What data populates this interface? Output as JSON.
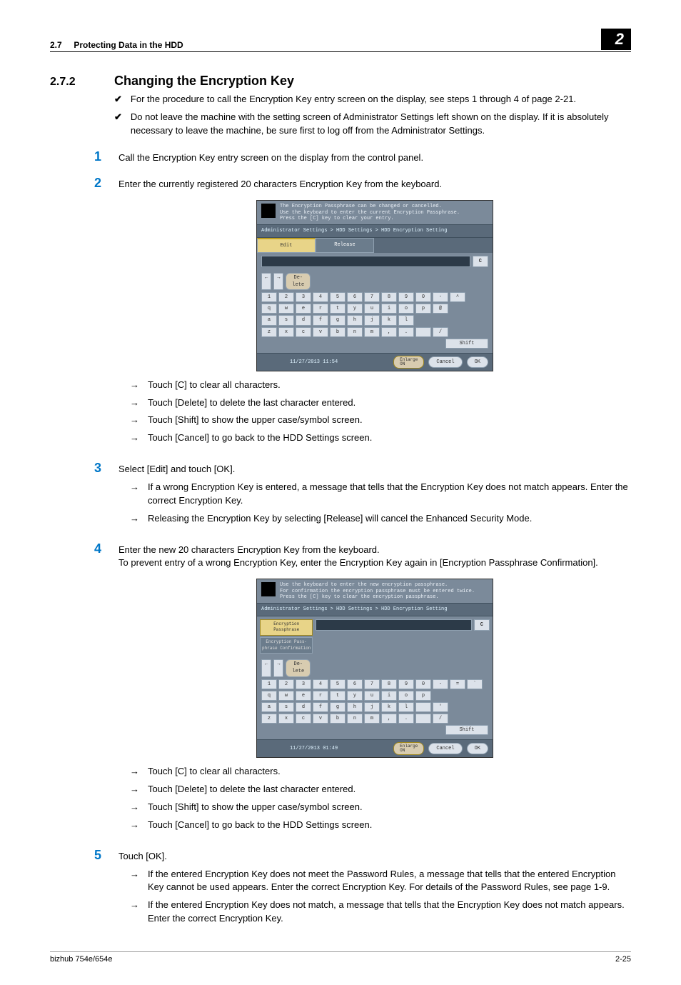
{
  "header": {
    "section_num_label": "2.7",
    "section_label": "Protecting Data in the HDD",
    "chapter_badge": "2"
  },
  "title": {
    "number": "2.7.2",
    "heading": "Changing the Encryption Key"
  },
  "pre_checks": [
    "For the procedure to call the Encryption Key entry screen on the display, see steps 1 through 4 of page 2-21.",
    "Do not leave the machine with the setting screen of Administrator Settings left shown on the display. If it is absolutely necessary to leave the machine, be sure first to log off from the Administrator Settings."
  ],
  "steps": {
    "s1": "Call the Encryption Key entry screen on the display from the control panel.",
    "s2": "Enter the currently registered 20 characters Encryption Key from the keyboard.",
    "s3": "Select [Edit] and touch [OK].",
    "s4a": "Enter the new 20 characters Encryption Key from the keyboard.",
    "s4b": "To prevent entry of a wrong Encryption Key, enter the Encryption Key again in [Encryption Passphrase Confirmation].",
    "s5": "Touch [OK]."
  },
  "arrows_after_s2": [
    "Touch [C] to clear all characters.",
    "Touch [Delete] to delete the last character entered.",
    "Touch [Shift] to show the upper case/symbol screen.",
    "Touch [Cancel] to go back to the HDD Settings screen."
  ],
  "arrows_after_s3": [
    "If a wrong Encryption Key is entered, a message that tells that the Encryption Key does not match appears. Enter the correct Encryption Key.",
    "Releasing the Encryption Key by selecting [Release] will cancel the Enhanced Security Mode."
  ],
  "arrows_after_s4": [
    "Touch [C] to clear all characters.",
    "Touch [Delete] to delete the last character entered.",
    "Touch [Shift] to show the upper case/symbol screen.",
    "Touch [Cancel] to go back to the HDD Settings screen."
  ],
  "arrows_after_s5": [
    "If the entered Encryption Key does not meet the Password Rules, a message that tells that the entered Encryption Key cannot be used appears. Enter the correct Encryption Key. For details of the Password Rules, see page 1-9.",
    "If the entered Encryption Key does not match, a message that tells that the Encryption Key does not match appears. Enter the correct Encryption Key."
  ],
  "screenshot1": {
    "msg": "The Encryption Passphrase can be changed or cancelled.\nUse the keyboard to enter the current Encryption Passphrase.\nPress the [C] key to clear your entry.",
    "breadcrumb": "Administrator Settings > HDD Settings > HDD Encryption Setting",
    "tab_edit": "Edit",
    "tab_release": "Release",
    "c_btn": "C",
    "delete": "De-\nlete",
    "shift": "Shift",
    "timestamp": "11/27/2013   11:54",
    "enlarge": "Enlarge\nON",
    "cancel": "Cancel",
    "ok": "OK",
    "row1": [
      "1",
      "2",
      "3",
      "4",
      "5",
      "6",
      "7",
      "8",
      "9",
      "0",
      "-",
      "^"
    ],
    "row2": [
      "q",
      "w",
      "e",
      "r",
      "t",
      "y",
      "u",
      "i",
      "o",
      "p",
      "@"
    ],
    "row3": [
      "a",
      "s",
      "d",
      "f",
      "g",
      "h",
      "j",
      "k",
      "l"
    ],
    "row4": [
      "z",
      "x",
      "c",
      "v",
      "b",
      "n",
      "m",
      ",",
      ".",
      "",
      "/"
    ]
  },
  "screenshot2": {
    "msg": "Use the keyboard to enter the new encryption passphrase.\nFor confirmation the encryption passphrase must be entered twice.\nPress the [C] key to clear the encryption passphrase.",
    "breadcrumb": "Administrator Settings > HDD Settings > HDD Encryption Setting",
    "side1": "Encryption\nPassphrase",
    "side2": "Encryption Pass-\nphrase Confirmation",
    "c_btn": "C",
    "delete": "De-\nlete",
    "shift": "Shift",
    "timestamp": "11/27/2013   01:49",
    "enlarge": "Enlarge\nON",
    "cancel": "Cancel",
    "ok": "OK",
    "row1": [
      "1",
      "2",
      "3",
      "4",
      "5",
      "6",
      "7",
      "8",
      "9",
      "0",
      "-",
      "=",
      "`"
    ],
    "row2": [
      "q",
      "w",
      "e",
      "r",
      "t",
      "y",
      "u",
      "i",
      "o",
      "p"
    ],
    "row3": [
      "a",
      "s",
      "d",
      "f",
      "g",
      "h",
      "j",
      "k",
      "l",
      "",
      "'"
    ],
    "row4": [
      "z",
      "x",
      "c",
      "v",
      "b",
      "n",
      "m",
      ",",
      ".",
      "",
      "/"
    ]
  },
  "footer": {
    "left": "bizhub 754e/654e",
    "right": "2-25"
  }
}
